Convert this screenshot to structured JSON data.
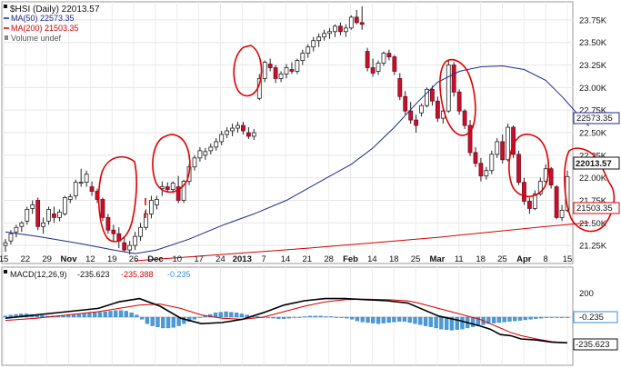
{
  "chart_data": [
    {
      "type": "candlestick",
      "title": "$HSI (Daily) 22013.57",
      "legend": [
        {
          "name": "MA(50) 22573.35",
          "color": "#1f2a8c"
        },
        {
          "name": "MA(200) 21503.35",
          "color": "#d40000"
        },
        {
          "name": "Volume undef",
          "color": "#888888"
        }
      ],
      "legend_placement": "top-left",
      "grid": true,
      "yaxis_position": "right",
      "ylim": [
        21050,
        23950
      ],
      "yticks": [
        "21.25K",
        "21.50K",
        "21.75K",
        "22.00K",
        "22.25K",
        "22.50K",
        "22.75K",
        "23.00K",
        "23.25K",
        "23.50K",
        "23.75K"
      ],
      "ytick_values": [
        21250,
        21500,
        21750,
        22000,
        22250,
        22500,
        22750,
        23000,
        23250,
        23500,
        23750
      ],
      "xticks": [
        "15",
        "22",
        "29",
        "Nov",
        "12",
        "19",
        "26",
        "Dec",
        "10",
        "17",
        "24",
        "2013",
        "7",
        "14",
        "21",
        "28",
        "Feb",
        "14",
        "18",
        "25",
        "Mar",
        "11",
        "18",
        "25",
        "Apr",
        "8",
        "15"
      ],
      "xtick_bold": [
        "Nov",
        "Dec",
        "2013",
        "Feb",
        "Mar",
        "Apr"
      ],
      "last_price_label": "22013.57",
      "ma50_label": "22573.35",
      "ma200_label": "21503.35",
      "candles": [
        [
          21250,
          21320,
          21180,
          21280
        ],
        [
          21300,
          21420,
          21260,
          21380
        ],
        [
          21400,
          21480,
          21340,
          21450
        ],
        [
          21460,
          21520,
          21400,
          21500
        ],
        [
          21520,
          21680,
          21480,
          21650
        ],
        [
          21660,
          21750,
          21600,
          21700
        ],
        [
          21750,
          21780,
          21420,
          21460
        ],
        [
          21460,
          21560,
          21380,
          21500
        ],
        [
          21520,
          21680,
          21480,
          21650
        ],
        [
          21600,
          21680,
          21500,
          21560
        ],
        [
          21560,
          21650,
          21520,
          21620
        ],
        [
          21600,
          21800,
          21580,
          21780
        ],
        [
          21760,
          21820,
          21720,
          21790
        ],
        [
          21800,
          21980,
          21760,
          21950
        ],
        [
          21950,
          22100,
          21900,
          21950
        ],
        [
          21950,
          22080,
          21900,
          22040
        ],
        [
          21900,
          21960,
          21800,
          21850
        ],
        [
          21850,
          21880,
          21720,
          21760
        ],
        [
          21760,
          21780,
          21520,
          21560
        ],
        [
          21560,
          21600,
          21380,
          21420
        ],
        [
          21420,
          21480,
          21300,
          21380
        ],
        [
          21380,
          21450,
          21220,
          21300
        ],
        [
          21280,
          21350,
          21180,
          21200
        ],
        [
          21200,
          21300,
          21150,
          21250
        ],
        [
          21250,
          21400,
          21200,
          21350
        ],
        [
          21350,
          21500,
          21300,
          21450
        ],
        [
          21450,
          21650,
          21420,
          21600
        ],
        [
          21600,
          21800,
          21550,
          21750
        ],
        [
          21700,
          21800,
          21650,
          21760
        ],
        [
          21880,
          21960,
          21800,
          21900
        ],
        [
          21900,
          21950,
          21850,
          21870
        ],
        [
          21870,
          21960,
          21830,
          21940
        ],
        [
          21900,
          22020,
          21720,
          21750
        ],
        [
          21750,
          21980,
          21720,
          21960
        ],
        [
          21960,
          22150,
          21920,
          22120
        ],
        [
          22120,
          22250,
          22080,
          22220
        ],
        [
          22220,
          22340,
          22180,
          22300
        ],
        [
          22250,
          22330,
          22200,
          22290
        ],
        [
          22300,
          22380,
          22260,
          22340
        ],
        [
          22340,
          22440,
          22300,
          22400
        ],
        [
          22400,
          22520,
          22360,
          22480
        ],
        [
          22480,
          22560,
          22440,
          22520
        ],
        [
          22520,
          22600,
          22460,
          22550
        ],
        [
          22550,
          22620,
          22500,
          22580
        ],
        [
          22580,
          22620,
          22480,
          22520
        ],
        [
          22500,
          22560,
          22430,
          22460
        ],
        [
          22460,
          22540,
          22420,
          22500
        ],
        [
          22880,
          23150,
          22860,
          23100
        ],
        [
          23100,
          23300,
          23060,
          23280
        ],
        [
          23260,
          23320,
          23180,
          23220
        ],
        [
          23220,
          23250,
          23050,
          23100
        ],
        [
          23100,
          23180,
          23060,
          23150
        ],
        [
          23150,
          23260,
          23100,
          23220
        ],
        [
          23200,
          23280,
          23150,
          23180
        ],
        [
          23180,
          23320,
          23150,
          23300
        ],
        [
          23300,
          23420,
          23250,
          23380
        ],
        [
          23380,
          23480,
          23330,
          23450
        ],
        [
          23450,
          23560,
          23400,
          23520
        ],
        [
          23520,
          23600,
          23450,
          23560
        ],
        [
          23560,
          23640,
          23520,
          23600
        ],
        [
          23600,
          23660,
          23540,
          23620
        ],
        [
          23620,
          23700,
          23560,
          23680
        ],
        [
          23680,
          23720,
          23580,
          23620
        ],
        [
          23620,
          23700,
          23560,
          23660
        ],
        [
          23660,
          23800,
          23640,
          23780
        ],
        [
          23780,
          23860,
          23700,
          23720
        ],
        [
          23720,
          23900,
          23640,
          23700
        ],
        [
          23400,
          23440,
          23180,
          23220
        ],
        [
          23220,
          23320,
          23120,
          23160
        ],
        [
          23180,
          23300,
          23140,
          23270
        ],
        [
          23270,
          23400,
          23240,
          23380
        ],
        [
          23380,
          23420,
          23300,
          23340
        ],
        [
          23340,
          23360,
          23140,
          23180
        ],
        [
          23100,
          23160,
          22860,
          22900
        ],
        [
          22900,
          22960,
          22700,
          22740
        ],
        [
          22740,
          22840,
          22600,
          22640
        ],
        [
          22640,
          22700,
          22500,
          22580
        ],
        [
          22720,
          22820,
          22680,
          22800
        ],
        [
          22800,
          23000,
          22780,
          22980
        ],
        [
          22980,
          23020,
          22800,
          22850
        ],
        [
          22850,
          22900,
          22620,
          22660
        ],
        [
          22660,
          22780,
          22600,
          22740
        ],
        [
          22740,
          23300,
          22720,
          23250
        ],
        [
          23250,
          23280,
          22900,
          22950
        ],
        [
          22950,
          22980,
          22700,
          22740
        ],
        [
          22740,
          22760,
          22540,
          22580
        ],
        [
          22580,
          22640,
          22240,
          22280
        ],
        [
          22280,
          22340,
          22120,
          22160
        ],
        [
          22160,
          22220,
          21960,
          22020
        ],
        [
          22020,
          22120,
          21980,
          22080
        ],
        [
          22080,
          22300,
          22040,
          22260
        ],
        [
          22260,
          22440,
          22220,
          22400
        ],
        [
          22400,
          22480,
          22160,
          22200
        ],
        [
          22200,
          22600,
          22180,
          22560
        ],
        [
          22560,
          22580,
          22220,
          22260
        ],
        [
          22260,
          22300,
          21920,
          21950
        ],
        [
          21950,
          22000,
          21700,
          21740
        ],
        [
          21740,
          21780,
          21600,
          21660
        ],
        [
          21660,
          21860,
          21640,
          21820
        ],
        [
          21820,
          22000,
          21800,
          21960
        ],
        [
          21960,
          22150,
          21920,
          22100
        ],
        [
          22100,
          22120,
          21880,
          21920
        ],
        [
          21900,
          21920,
          21540,
          21560
        ],
        [
          21560,
          21700,
          21520,
          21640
        ],
        [
          21640,
          22080,
          21620,
          22013.57
        ]
      ],
      "ma50": [
        [
          0,
          21400
        ],
        [
          6,
          21350
        ],
        [
          14,
          21270
        ],
        [
          20,
          21200
        ],
        [
          24,
          21160
        ],
        [
          28,
          21200
        ],
        [
          34,
          21320
        ],
        [
          40,
          21470
        ],
        [
          46,
          21600
        ],
        [
          52,
          21750
        ],
        [
          58,
          21950
        ],
        [
          64,
          22150
        ],
        [
          68,
          22330
        ],
        [
          72,
          22560
        ],
        [
          76,
          22820
        ],
        [
          80,
          23060
        ],
        [
          84,
          23180
        ],
        [
          88,
          23230
        ],
        [
          92,
          23240
        ],
        [
          96,
          23200
        ],
        [
          100,
          23080
        ],
        [
          103,
          22900
        ],
        [
          106,
          22700
        ],
        [
          108,
          22573.35
        ]
      ],
      "ma200": [
        [
          24,
          21080
        ],
        [
          40,
          21150
        ],
        [
          56,
          21220
        ],
        [
          70,
          21290
        ],
        [
          80,
          21340
        ],
        [
          90,
          21400
        ],
        [
          100,
          21460
        ],
        [
          108,
          21503.35
        ]
      ]
    },
    {
      "type": "line",
      "title": "MACD(12,26,9) -235.623, -235.388, -0.235",
      "legend": [
        {
          "name": "MACD(12,26,9)",
          "color": "#000000"
        },
        {
          "name": "-235.623",
          "color": "#000000"
        },
        {
          "name": "-235.388",
          "color": "#d40000"
        },
        {
          "name": "-0.235",
          "color": "#3a8fd8"
        }
      ],
      "yticks": [
        "200"
      ],
      "ytick_values": [
        200
      ],
      "ylim": [
        -300,
        300
      ],
      "macd_label": "-235.623",
      "hist_label": "-0.235",
      "macd": [
        [
          0,
          -10
        ],
        [
          6,
          20
        ],
        [
          12,
          50
        ],
        [
          18,
          80
        ],
        [
          22,
          140
        ],
        [
          26,
          170
        ],
        [
          30,
          100
        ],
        [
          34,
          -10
        ],
        [
          38,
          -60
        ],
        [
          42,
          -50
        ],
        [
          46,
          -20
        ],
        [
          50,
          40
        ],
        [
          54,
          110
        ],
        [
          58,
          150
        ],
        [
          62,
          170
        ],
        [
          66,
          170
        ],
        [
          70,
          160
        ],
        [
          74,
          150
        ],
        [
          78,
          130
        ],
        [
          80,
          90
        ],
        [
          84,
          10
        ],
        [
          88,
          -30
        ],
        [
          92,
          -80
        ],
        [
          94,
          -110
        ],
        [
          96,
          -160
        ],
        [
          98,
          -170
        ],
        [
          100,
          -200
        ],
        [
          103,
          -210
        ],
        [
          106,
          -230
        ],
        [
          109,
          -235.623
        ]
      ],
      "signal": [
        [
          0,
          -30
        ],
        [
          6,
          -10
        ],
        [
          12,
          20
        ],
        [
          18,
          50
        ],
        [
          22,
          80
        ],
        [
          26,
          110
        ],
        [
          30,
          120
        ],
        [
          34,
          80
        ],
        [
          38,
          20
        ],
        [
          42,
          -10
        ],
        [
          46,
          -20
        ],
        [
          50,
          0
        ],
        [
          54,
          50
        ],
        [
          58,
          100
        ],
        [
          62,
          140
        ],
        [
          66,
          160
        ],
        [
          70,
          165
        ],
        [
          74,
          160
        ],
        [
          78,
          150
        ],
        [
          80,
          130
        ],
        [
          84,
          80
        ],
        [
          88,
          30
        ],
        [
          92,
          -20
        ],
        [
          94,
          -60
        ],
        [
          96,
          -100
        ],
        [
          98,
          -140
        ],
        [
          100,
          -170
        ],
        [
          103,
          -200
        ],
        [
          106,
          -225
        ],
        [
          109,
          -235.388
        ]
      ],
      "histogram": [
        10,
        20,
        25,
        30,
        30,
        25,
        20,
        15,
        10,
        10,
        12,
        15,
        18,
        20,
        25,
        30,
        35,
        40,
        45,
        50,
        55,
        60,
        60,
        55,
        40,
        20,
        -20,
        -60,
        -80,
        -90,
        -100,
        -100,
        -95,
        -80,
        -60,
        -40,
        -20,
        -5,
        10,
        25,
        40,
        45,
        50,
        45,
        40,
        30,
        20,
        10,
        5,
        0,
        -5,
        -10,
        -15,
        -15,
        -10,
        -5,
        0,
        5,
        10,
        10,
        10,
        5,
        5,
        0,
        -5,
        -10,
        -20,
        -35,
        -45,
        -50,
        -55,
        -60,
        -55,
        -50,
        -45,
        -40,
        -40,
        -50,
        -60,
        -70,
        -80,
        -90,
        -100,
        -110,
        -115,
        -120,
        -115,
        -110,
        -100,
        -90,
        -80,
        -70,
        -60,
        -55,
        -50,
        -45,
        -40,
        -35,
        -30,
        -25,
        -20,
        -15,
        -10,
        -5,
        -3,
        -2,
        -1,
        -0.235
      ]
    }
  ]
}
